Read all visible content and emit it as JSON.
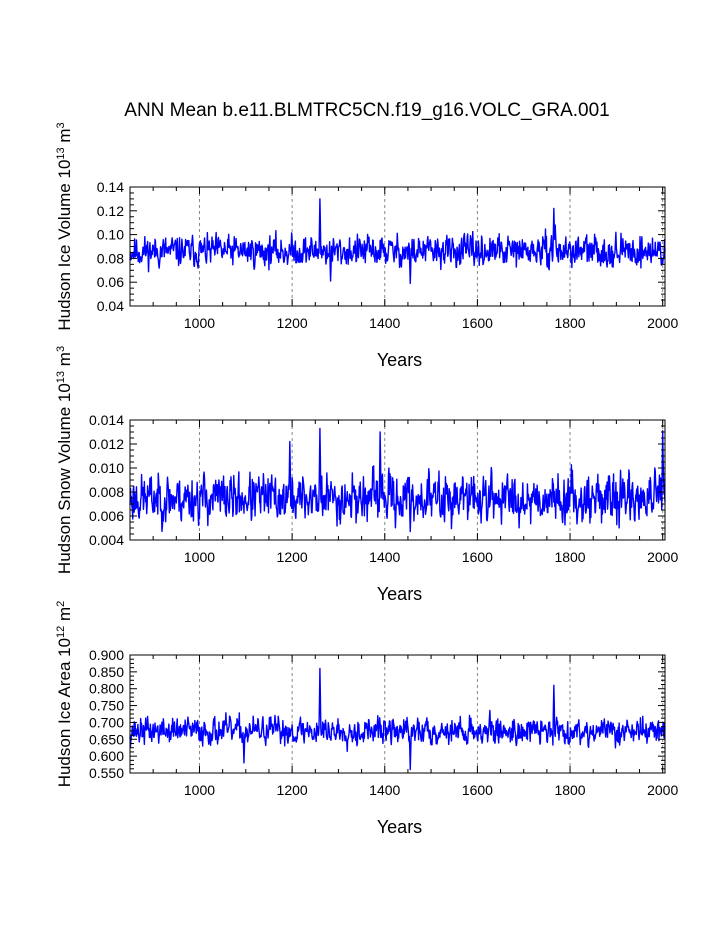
{
  "title": "ANN Mean b.e11.BLMTRC5CN.f19_g16.VOLC_GRA.001",
  "series_color": "#0000ff",
  "chart_data": [
    {
      "type": "line",
      "ylabel_main": "Hudson Ice Volume 10",
      "ylabel_sup": "13",
      "ylabel_unit": " m",
      "ylabel_unit_sup": "3",
      "xlabel": "Years",
      "xlim": [
        850,
        2005
      ],
      "ylim": [
        0.04,
        0.14
      ],
      "xticks": [
        1000,
        1200,
        1400,
        1600,
        1800,
        2000
      ],
      "yticks": [
        "0.04",
        "0.06",
        "0.08",
        "0.10",
        "0.12",
        "0.14"
      ],
      "series": [
        {
          "name": "Hudson Ice Volume",
          "start_year": 850,
          "baseline": 0.086,
          "spread": 0.009,
          "seed": 11,
          "peaks": [
            [
              1260,
              0.13
            ],
            [
              1283,
              0.061
            ],
            [
              1455,
              0.059
            ],
            [
              1765,
              0.122
            ],
            [
              1768,
              0.108
            ]
          ]
        }
      ]
    },
    {
      "type": "line",
      "ylabel_main": "Hudson Snow Volume 10",
      "ylabel_sup": "13",
      "ylabel_unit": " m",
      "ylabel_unit_sup": "3",
      "xlabel": "Years",
      "xlim": [
        850,
        2005
      ],
      "ylim": [
        0.004,
        0.014
      ],
      "xticks": [
        1000,
        1200,
        1400,
        1600,
        1800,
        2000
      ],
      "yticks": [
        "0.004",
        "0.006",
        "0.008",
        "0.010",
        "0.012",
        "0.014"
      ],
      "series": [
        {
          "name": "Hudson Snow Volume",
          "start_year": 850,
          "baseline": 0.0075,
          "spread": 0.0014,
          "seed": 23,
          "peaks": [
            [
              1195,
              0.0122
            ],
            [
              1260,
              0.0133
            ],
            [
              1390,
              0.013
            ],
            [
              2000,
              0.0131
            ],
            [
              1455,
              0.0047
            ]
          ]
        }
      ]
    },
    {
      "type": "line",
      "ylabel_main": "Hudson Ice Area 10",
      "ylabel_sup": "12",
      "ylabel_unit": " m",
      "ylabel_unit_sup": "2",
      "xlabel": "Years",
      "xlim": [
        850,
        2005
      ],
      "ylim": [
        0.55,
        0.9
      ],
      "xticks": [
        1000,
        1200,
        1400,
        1600,
        1800,
        2000
      ],
      "yticks": [
        "0.550",
        "0.600",
        "0.650",
        "0.700",
        "0.750",
        "0.800",
        "0.850",
        "0.900"
      ],
      "series": [
        {
          "name": "Hudson Ice Area",
          "start_year": 850,
          "baseline": 0.675,
          "spread": 0.028,
          "seed": 37,
          "peaks": [
            [
              1260,
              0.86
            ],
            [
              1765,
              0.81
            ],
            [
              1455,
              0.56
            ],
            [
              1096,
              0.58
            ]
          ]
        }
      ]
    }
  ]
}
